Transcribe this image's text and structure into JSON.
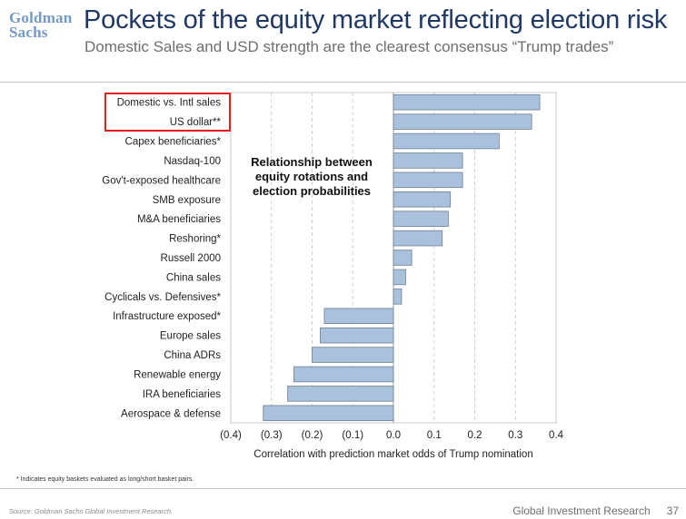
{
  "header": {
    "logo_line1": "Goldman",
    "logo_line2": "Sachs",
    "title": "Pockets of the equity market reflecting election risk",
    "subtitle": "Domestic Sales and USD strength are the clearest consensus “Trump trades”"
  },
  "chart_data": {
    "type": "bar",
    "orientation": "horizontal",
    "annotation": "Relationship between equity rotations and election probabilities",
    "annotation_lines": [
      "Relationship between",
      "equity rotations and",
      "election probabilities"
    ],
    "xlabel": "Correlation with prediction market odds of Trump nomination",
    "xlim": [
      -0.4,
      0.4
    ],
    "xticks": [
      -0.4,
      -0.3,
      -0.2,
      -0.1,
      0.0,
      0.1,
      0.2,
      0.3,
      0.4
    ],
    "xtick_labels": [
      "(0.4)",
      "(0.3)",
      "(0.2)",
      "(0.1)",
      "0.0",
      "0.1",
      "0.2",
      "0.3",
      "0.4"
    ],
    "grid": "vertical dashed",
    "bar_color": "#a9c1dd",
    "bar_edge_color": "#6f7f90",
    "highlight_color": "#e02020",
    "highlighted_categories": [
      "Domestic vs. Intl sales",
      "US dollar**"
    ],
    "categories": [
      "Domestic vs. Intl sales",
      "US dollar**",
      "Capex beneficiaries*",
      "Nasdaq-100",
      "Gov't-exposed healthcare",
      "SMB exposure",
      "M&A beneficiaries",
      "Reshoring*",
      "Russell 2000",
      "China sales",
      "Cyclicals vs. Defensives*",
      "Infrastructure exposed*",
      "Europe sales",
      "China ADRs",
      "Renewable energy",
      "IRA beneficiaries",
      "Aerospace & defense"
    ],
    "values": [
      0.36,
      0.34,
      0.26,
      0.17,
      0.17,
      0.14,
      0.135,
      0.12,
      0.045,
      0.03,
      0.02,
      -0.17,
      -0.18,
      -0.2,
      -0.245,
      -0.26,
      -0.32
    ]
  },
  "footnote": "* Indicates equity baskets evaluated as long/short basket pairs.",
  "footer": {
    "source": "Source: Goldman Sachs Global Investment Research.",
    "division": "Global Investment Research",
    "page_number": "37"
  }
}
